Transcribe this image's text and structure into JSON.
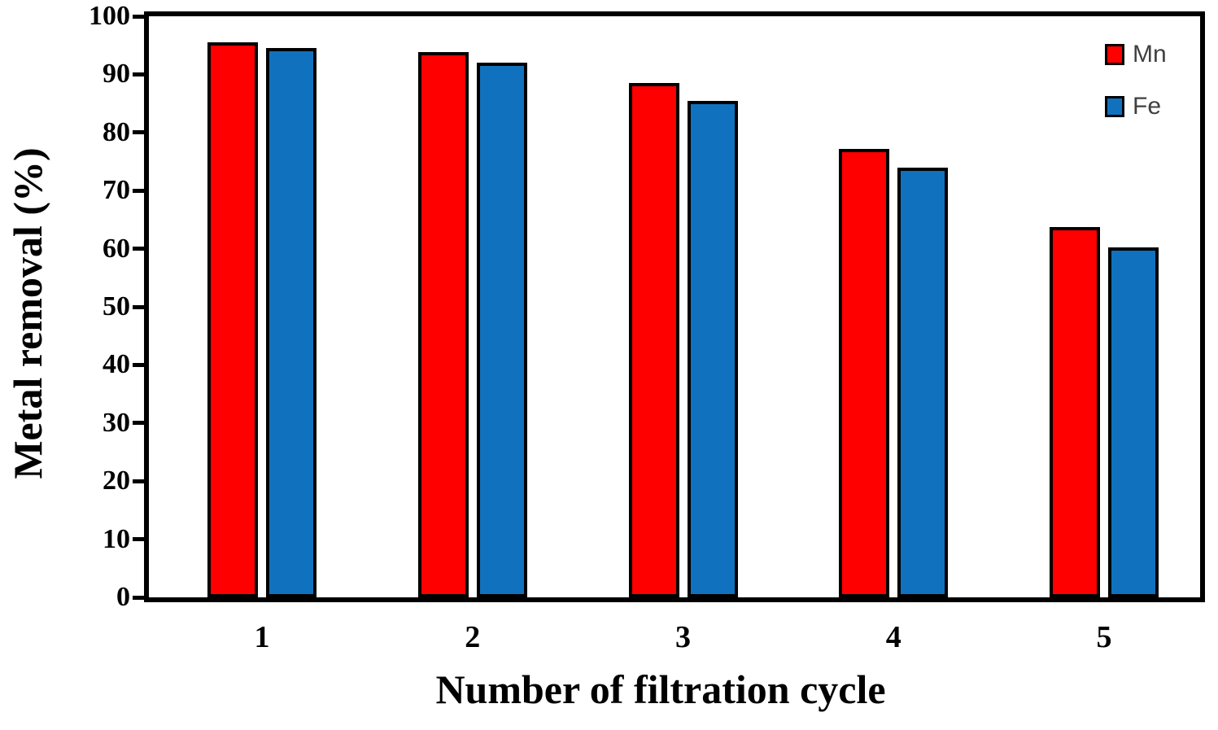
{
  "chart_data": {
    "type": "bar",
    "title": "",
    "xlabel": "Number of filtration cycle",
    "ylabel": "Metal removal (%)",
    "categories": [
      "1",
      "2",
      "3",
      "4",
      "5"
    ],
    "series": [
      {
        "name": "Mn",
        "color": "#ff0000",
        "values": [
          95.5,
          93.8,
          88.5,
          77.2,
          63.7
        ]
      },
      {
        "name": "Fe",
        "color": "#1072be",
        "values": [
          94.5,
          92.0,
          85.5,
          74.0,
          60.2
        ]
      }
    ],
    "ylim": [
      0,
      100
    ],
    "y_ticks": [
      0,
      10,
      20,
      30,
      40,
      50,
      60,
      70,
      80,
      90,
      100
    ],
    "grid": false,
    "legend_position": "top-right",
    "axis_color": "#000000"
  }
}
